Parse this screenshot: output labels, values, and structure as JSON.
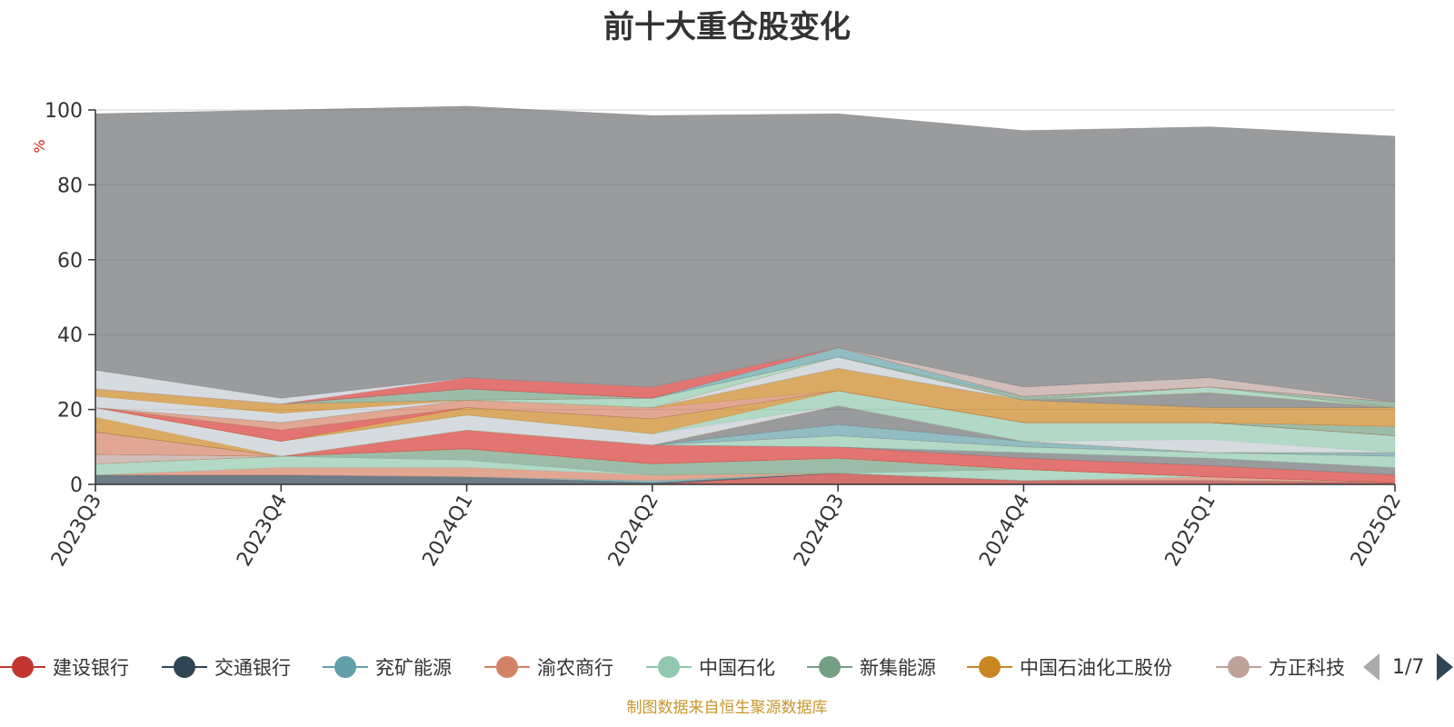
{
  "title": "前十大重仓股变化",
  "source_note": "制图数据来自恒生聚源数据库",
  "pager": {
    "text": "1/7"
  },
  "chart_data": {
    "type": "area",
    "stacked": true,
    "title": "前十大重仓股变化",
    "ylabel": "%",
    "ylim": [
      0,
      100
    ],
    "yticks": [
      0,
      20,
      40,
      60,
      80,
      100
    ],
    "categories": [
      "2023Q3",
      "2023Q4",
      "2024Q1",
      "2024Q2",
      "2024Q3",
      "2024Q4",
      "2025Q1",
      "2025Q2"
    ],
    "grid": true,
    "legend_position": "bottom",
    "series": [
      {
        "name": "建设银行",
        "color": "#c23531",
        "values": [
          0,
          0,
          0,
          0,
          3,
          1,
          1,
          0.5
        ]
      },
      {
        "name": "交通银行",
        "color": "#2f4554",
        "values": [
          2.5,
          2.5,
          2,
          0.5,
          0,
          0,
          0,
          0
        ]
      },
      {
        "name": "兖矿能源",
        "color": "#61a0a8",
        "values": [
          0,
          0,
          0,
          0.5,
          0,
          0,
          0,
          0
        ]
      },
      {
        "name": "渝农商行",
        "color": "#d48265",
        "values": [
          0,
          2,
          2.5,
          1.5,
          0,
          0,
          1,
          0
        ]
      },
      {
        "name": "中国石化",
        "color": "#91c7ae",
        "values": [
          3,
          3,
          2,
          0,
          0,
          3,
          0,
          0
        ]
      },
      {
        "name": "新集能源",
        "color": "#749f83",
        "values": [
          0,
          0,
          3,
          3,
          4,
          0,
          0,
          0
        ]
      },
      {
        "name": "中国石油化工股份",
        "color": "#ca8622",
        "values": [
          0,
          0,
          0,
          0,
          0,
          0,
          0,
          0
        ]
      },
      {
        "name": "方正科技",
        "color": "#bda29a",
        "values": [
          2.5,
          0,
          0,
          0,
          0,
          0,
          0,
          0
        ]
      },
      {
        "name": "",
        "color": "#d53a35",
        "values": [
          0,
          0,
          5,
          5,
          3,
          3,
          3,
          2
        ]
      },
      {
        "name": "",
        "color": "#6e7074",
        "values": [
          0,
          0,
          0,
          0,
          0,
          1.5,
          2,
          2
        ]
      },
      {
        "name": "",
        "color": "#91c7ae",
        "values": [
          0,
          0,
          0,
          0,
          3,
          1.5,
          1.5,
          3
        ]
      },
      {
        "name": "",
        "color": "#d48265",
        "values": [
          6,
          0,
          0,
          0,
          0,
          0,
          0,
          0
        ]
      },
      {
        "name": "",
        "color": "#61a0a8",
        "values": [
          0,
          0,
          0,
          0,
          3,
          1.5,
          0,
          1
        ]
      },
      {
        "name": "",
        "color": "#6e7074",
        "values": [
          0,
          0,
          0,
          0,
          5,
          0,
          0,
          0
        ]
      },
      {
        "name": "",
        "color": "#ca8622",
        "values": [
          4,
          0,
          0,
          0,
          0,
          0,
          0,
          0
        ]
      },
      {
        "name": "",
        "color": "#c4ccd3",
        "values": [
          2.5,
          4,
          4,
          3,
          0,
          0,
          3.5,
          0
        ]
      },
      {
        "name": "",
        "color": "#91c7ae",
        "values": [
          0,
          0,
          0,
          0,
          4,
          5,
          4.5,
          4.5
        ]
      },
      {
        "name": "",
        "color": "#ca8622",
        "values": [
          0,
          0,
          2,
          4,
          0,
          0,
          0,
          0
        ]
      },
      {
        "name": "",
        "color": "#d53a35",
        "values": [
          0,
          3,
          0,
          0,
          0,
          0,
          0,
          0
        ]
      },
      {
        "name": "",
        "color": "#749f83",
        "values": [
          0,
          0,
          0,
          0,
          0,
          0,
          0,
          2.5
        ]
      },
      {
        "name": "",
        "color": "#d48265",
        "values": [
          0,
          2,
          2,
          3,
          0,
          0,
          0,
          0
        ]
      },
      {
        "name": "",
        "color": "#ca8622",
        "values": [
          0,
          0,
          0,
          0,
          6,
          6,
          4,
          5
        ]
      },
      {
        "name": "",
        "color": "#6e7074",
        "values": [
          0,
          0,
          0,
          0,
          0,
          0,
          4,
          0
        ]
      },
      {
        "name": "",
        "color": "#c4ccd3",
        "values": [
          3,
          2.5,
          0,
          0,
          3,
          0,
          0,
          0
        ]
      },
      {
        "name": "",
        "color": "#ca8622",
        "values": [
          2,
          2.5,
          0,
          0,
          0,
          0,
          0,
          0
        ]
      },
      {
        "name": "",
        "color": "#91c7ae",
        "values": [
          0,
          0,
          0,
          2.5,
          0,
          0,
          1.5,
          0
        ]
      },
      {
        "name": "",
        "color": "#d48265",
        "values": [
          0,
          0,
          0,
          0,
          0,
          0,
          0,
          0
        ]
      },
      {
        "name": "",
        "color": "#749f83",
        "values": [
          0,
          0,
          3,
          0,
          0,
          1,
          0,
          1.5
        ]
      },
      {
        "name": "",
        "color": "#61a0a8",
        "values": [
          0,
          0,
          0,
          0,
          2.5,
          0,
          0,
          0
        ]
      },
      {
        "name": "",
        "color": "#d53a35",
        "values": [
          0,
          0,
          3,
          3,
          0,
          0,
          0,
          0
        ]
      },
      {
        "name": "",
        "color": "#bda29a",
        "values": [
          0,
          0,
          0,
          0,
          0,
          2.5,
          2.5,
          0
        ]
      },
      {
        "name": "",
        "color": "#c4ccd3",
        "values": [
          5,
          1.5,
          0,
          0,
          0,
          0,
          0,
          0
        ]
      },
      {
        "name": "",
        "color": "#6e7074",
        "values": [
          68.5,
          77,
          72.5,
          72.5,
          62.5,
          68.5,
          67,
          71
        ]
      }
    ]
  }
}
